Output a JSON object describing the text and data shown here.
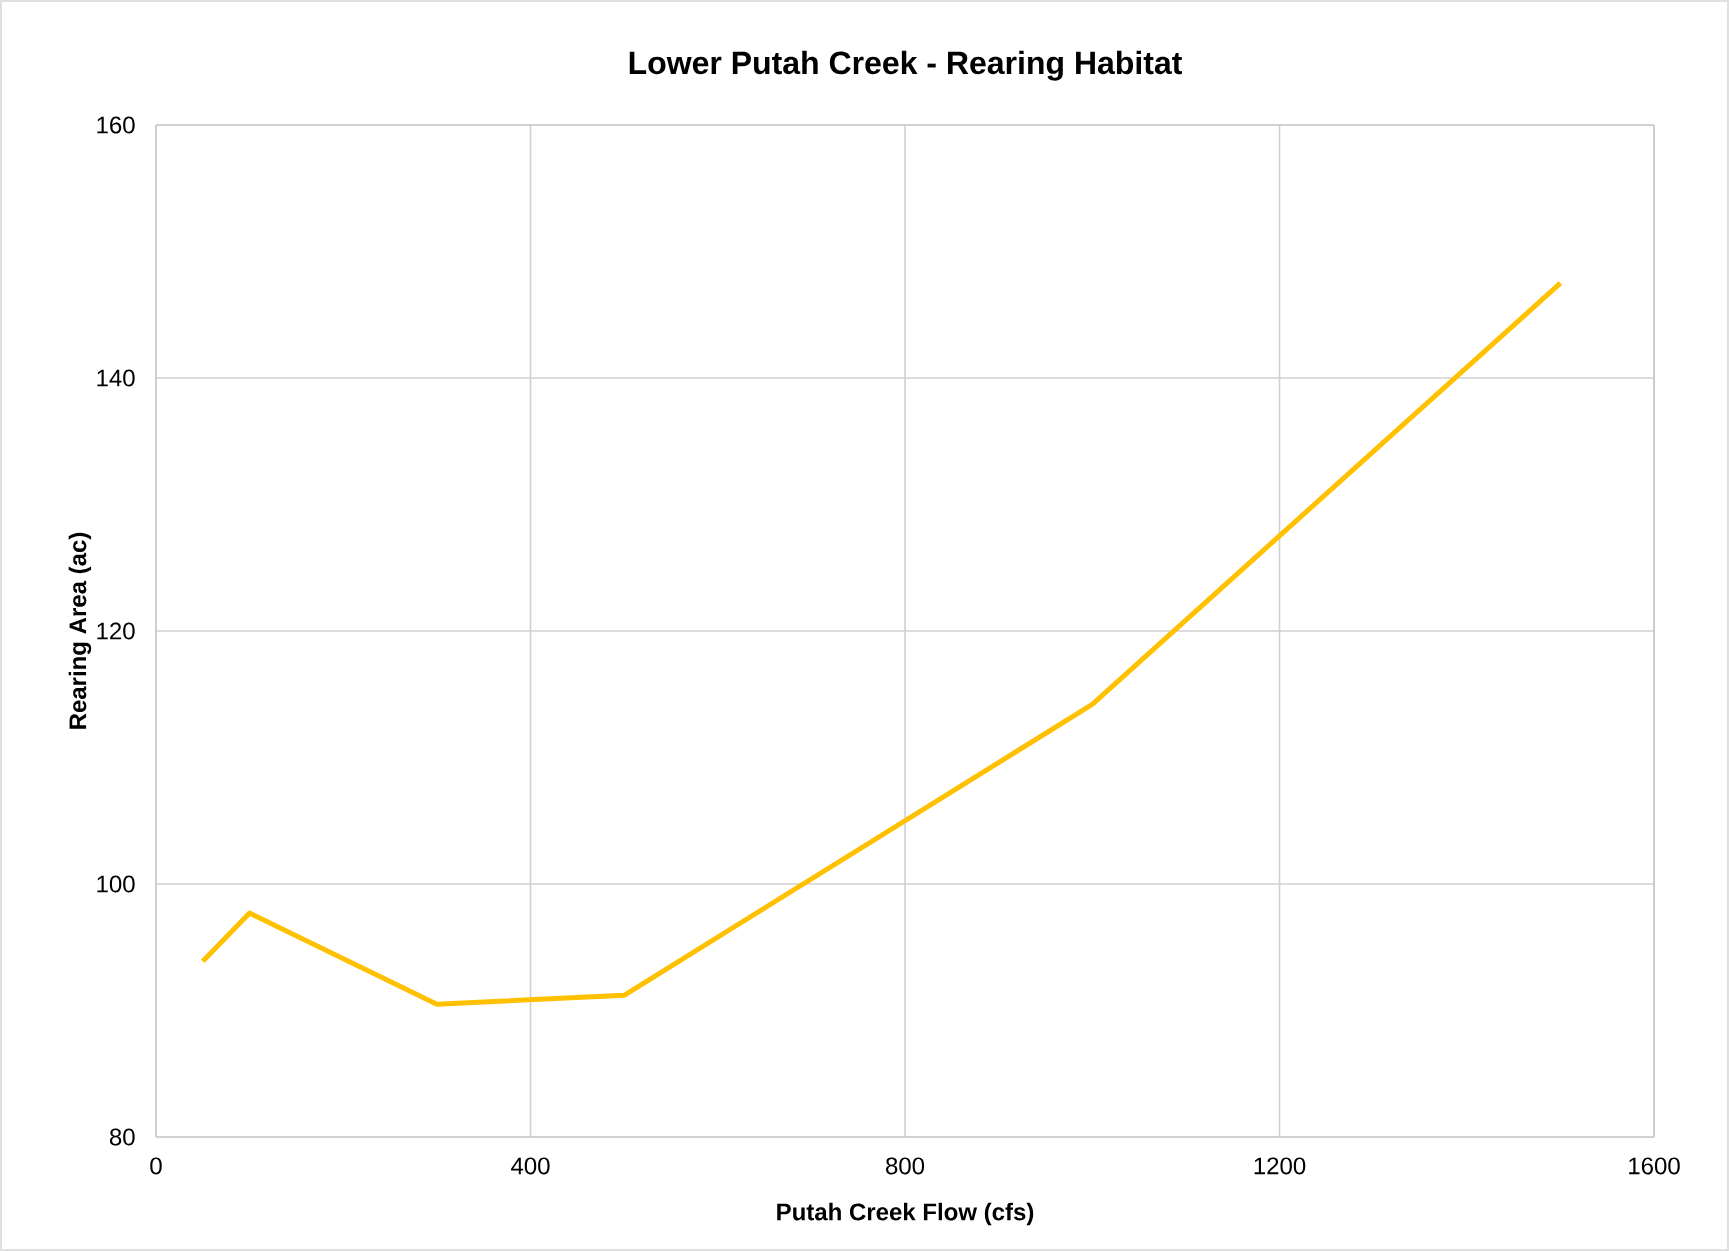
{
  "chart_data": {
    "type": "line",
    "title": "Lower Putah Creek - Rearing Habitat",
    "xlabel": "Putah Creek Flow (cfs)",
    "ylabel": "Rearing Area (ac)",
    "x": [
      50,
      100,
      300,
      500,
      1000,
      1500
    ],
    "series": [
      {
        "color": "#ffc000",
        "values": [
          93.9,
          97.7,
          90.5,
          91.2,
          114.2,
          147.5
        ]
      }
    ],
    "xlim": [
      0,
      1600
    ],
    "xticks": [
      0,
      400,
      800,
      1200,
      1600
    ],
    "ylim": [
      80,
      160
    ],
    "yticks": [
      80,
      100,
      120,
      140,
      160
    ],
    "grid": true,
    "marker": "none",
    "line_style": "solid"
  }
}
